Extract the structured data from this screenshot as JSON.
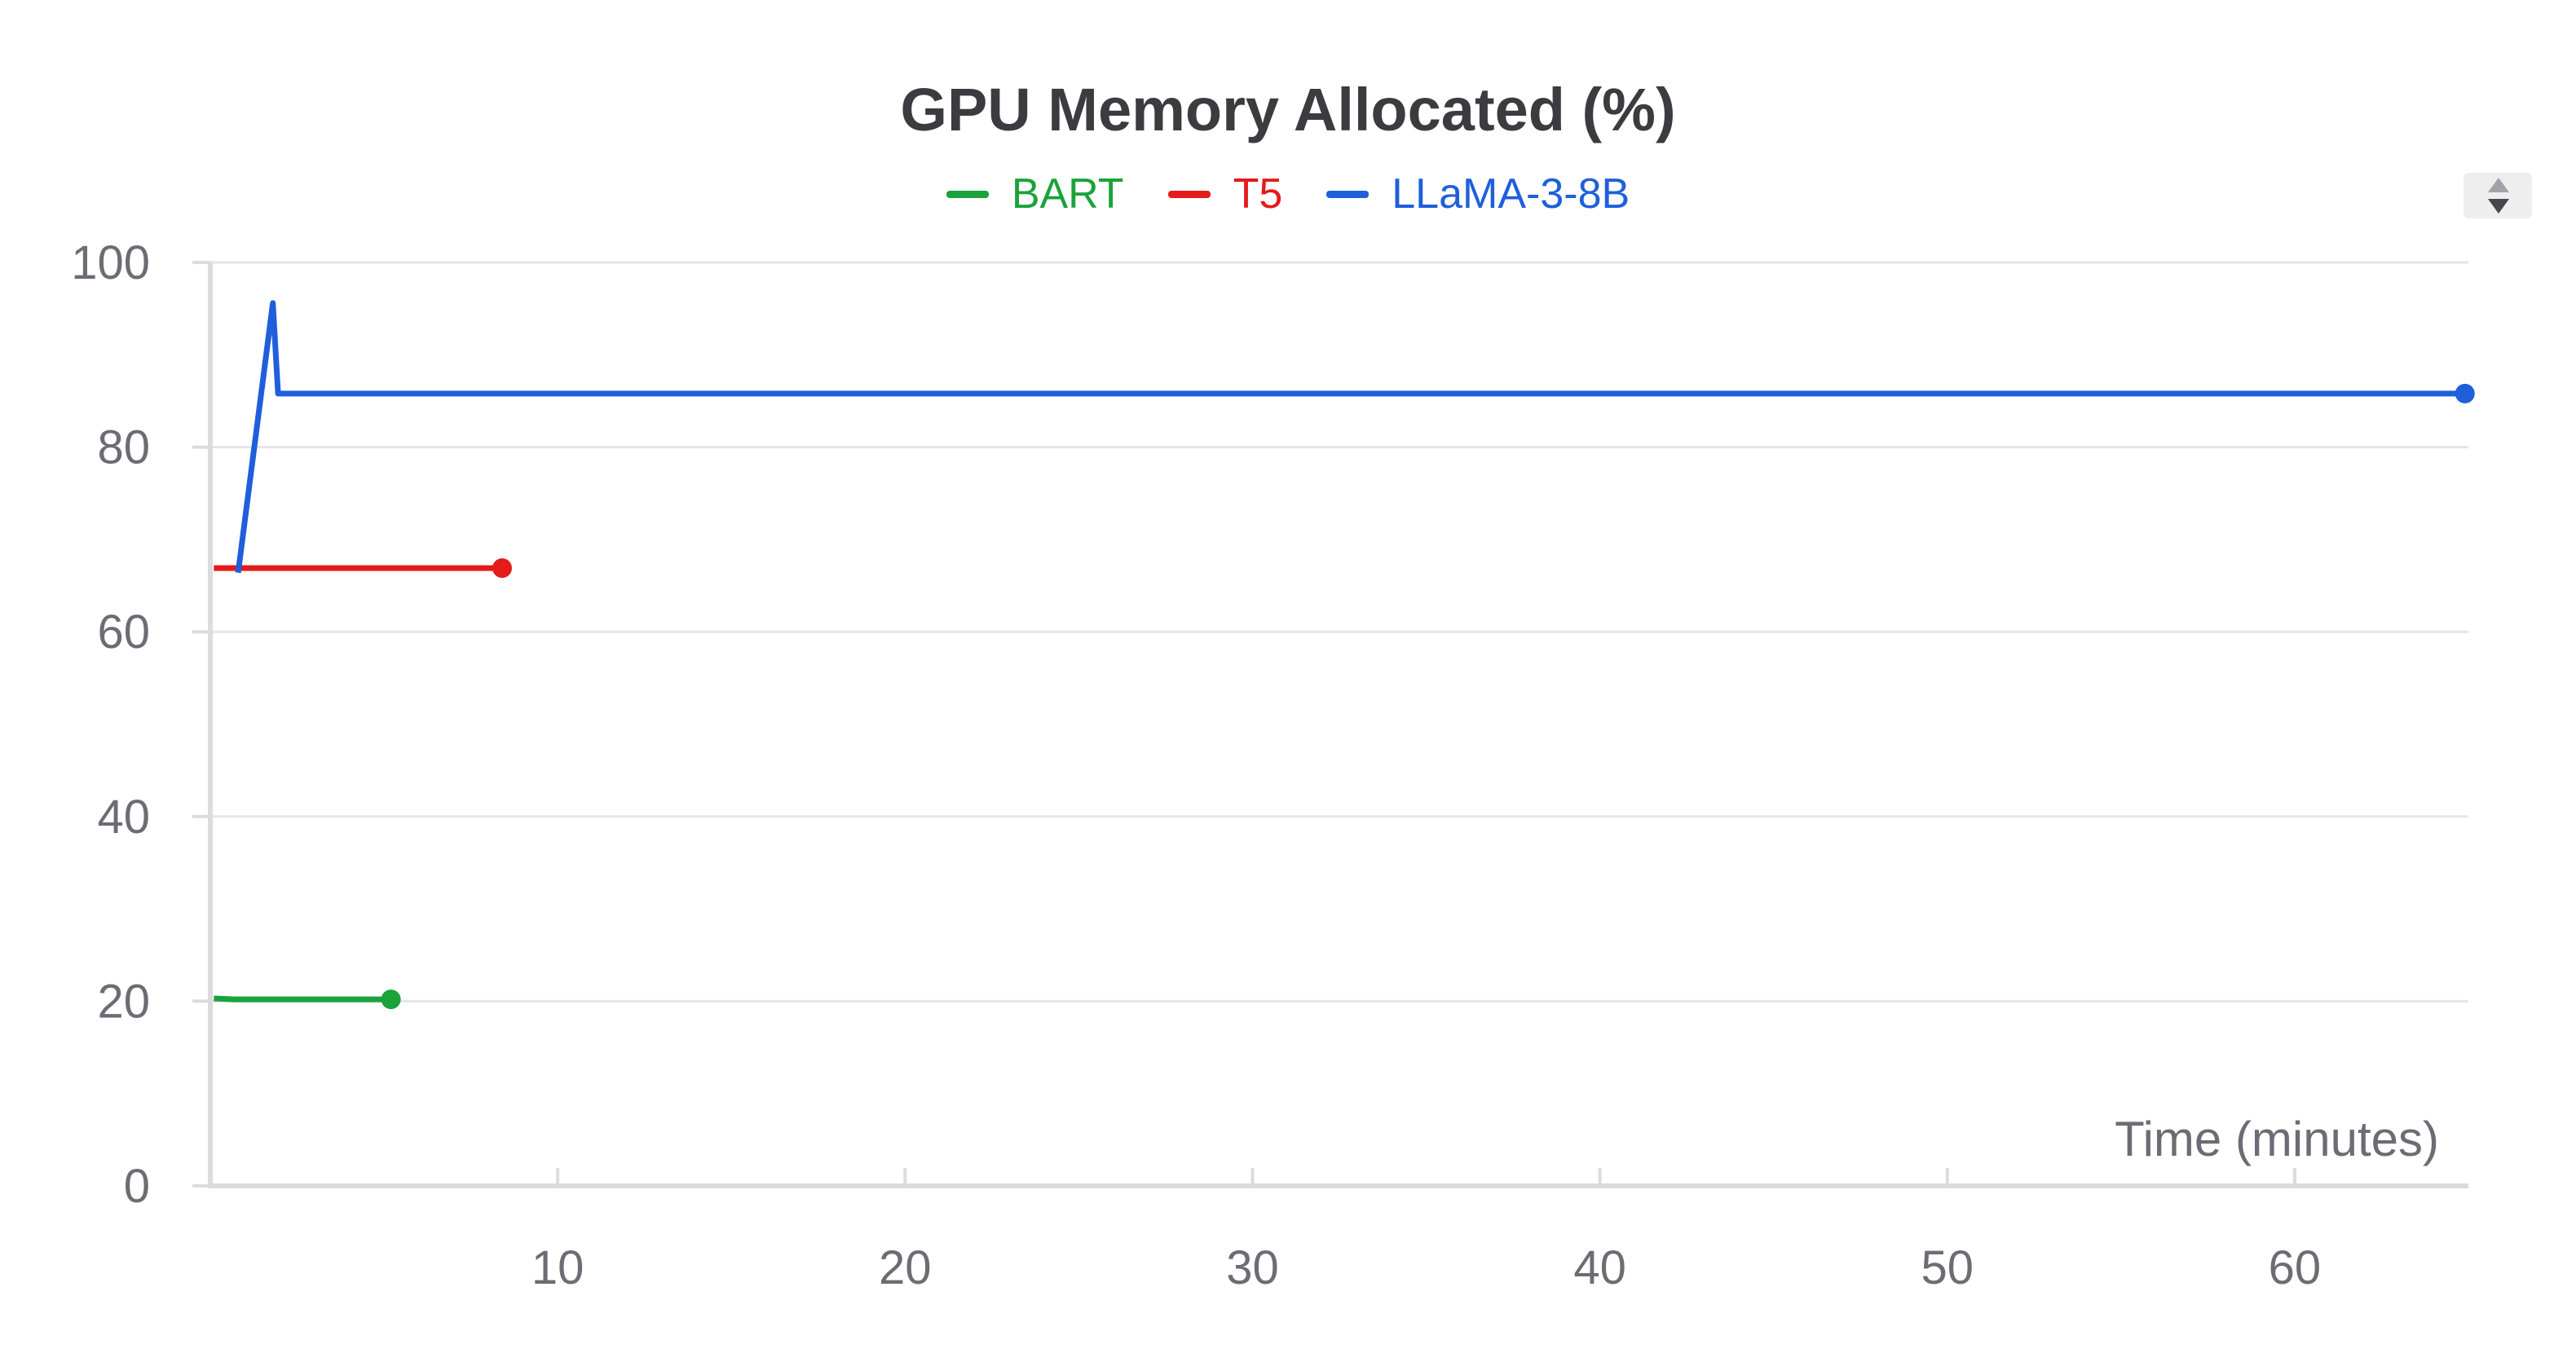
{
  "chart_data": {
    "type": "line",
    "title": "GPU Memory Allocated (%)",
    "xlabel": "Time (minutes)",
    "ylabel": "",
    "xlim": [
      0,
      65
    ],
    "ylim": [
      0,
      100
    ],
    "xticks": [
      10,
      20,
      30,
      40,
      50,
      60
    ],
    "yticks": [
      0,
      20,
      40,
      60,
      80,
      100
    ],
    "grid": true,
    "legend_position": "top-center",
    "series": [
      {
        "name": "BART",
        "color": "#1aa33a",
        "end_marker": true,
        "points": [
          [
            0.1,
            20.3
          ],
          [
            0.7,
            20.2
          ],
          [
            1.5,
            20.2
          ],
          [
            3.0,
            20.2
          ],
          [
            5.2,
            20.2
          ]
        ]
      },
      {
        "name": "T5",
        "color": "#e51a1a",
        "end_marker": true,
        "points": [
          [
            0.1,
            66.9
          ],
          [
            1.0,
            66.9
          ],
          [
            3.0,
            66.9
          ],
          [
            6.0,
            66.9
          ],
          [
            8.4,
            66.9
          ]
        ]
      },
      {
        "name": "LLaMA-3-8B",
        "color": "#1f5fdc",
        "end_marker": true,
        "points": [
          [
            0.8,
            66.4
          ],
          [
            1.8,
            95.6
          ],
          [
            1.95,
            85.8
          ],
          [
            5.0,
            85.8
          ],
          [
            20.0,
            85.8
          ],
          [
            40.0,
            85.8
          ],
          [
            64.9,
            85.8
          ]
        ]
      }
    ]
  }
}
